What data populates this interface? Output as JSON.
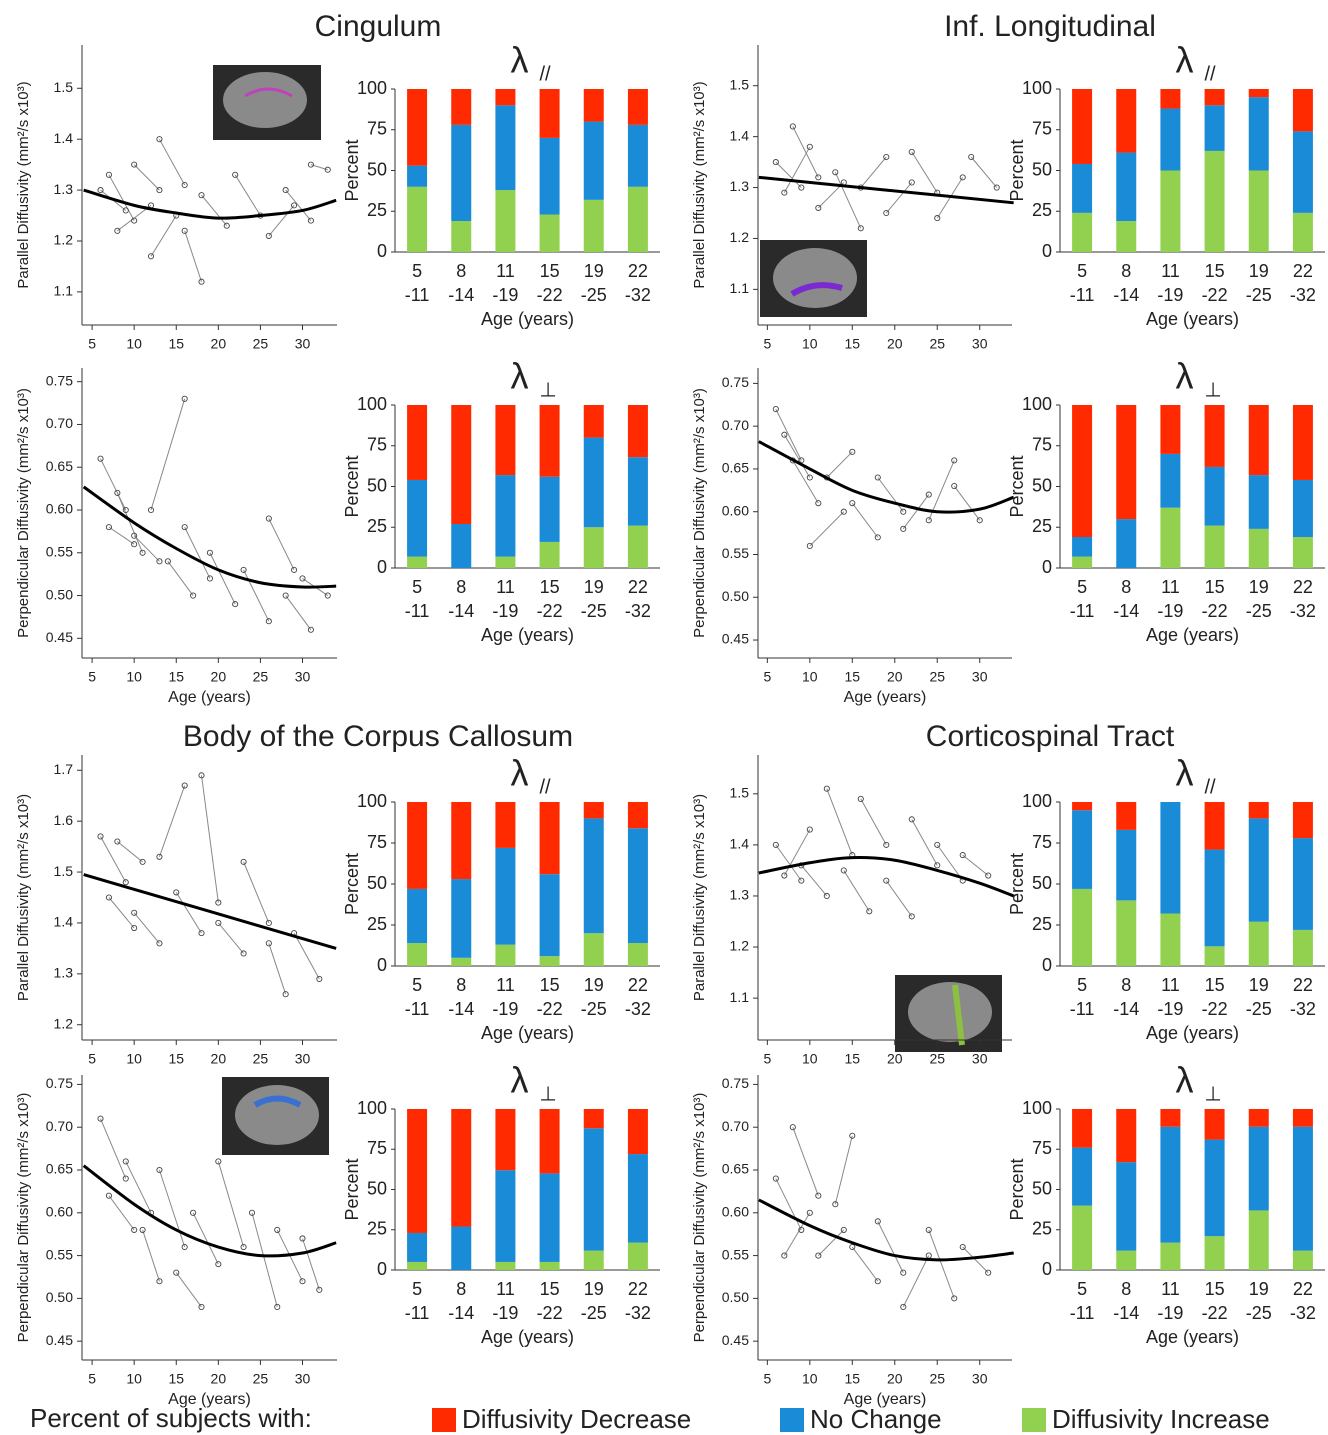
{
  "groups": [
    "Cingulum",
    "Inf. Longitudinal",
    "Body of the Corpus Callosum",
    "Corticospinal Tract"
  ],
  "legend_title": "Percent of subjects with:",
  "chart_data": [
    {
      "type": "scatter",
      "ylabel": "Parallel Diffusivity (mm²/s x10³)",
      "x": [
        6,
        9,
        7,
        10,
        8,
        12,
        10,
        13,
        12,
        15,
        13,
        16,
        16,
        18,
        18,
        21,
        22,
        25,
        26,
        29,
        28,
        31,
        31,
        33
      ],
      "y": [
        1.3,
        1.26,
        1.33,
        1.24,
        1.22,
        1.27,
        1.35,
        1.3,
        1.17,
        1.25,
        1.4,
        1.31,
        1.22,
        1.12,
        1.29,
        1.23,
        1.33,
        1.25,
        1.21,
        1.27,
        1.3,
        1.24,
        1.35,
        1.34
      ],
      "fit": {
        "x": [
          4,
          10,
          15,
          20,
          25,
          30,
          34
        ],
        "y": [
          1.3,
          1.27,
          1.255,
          1.245,
          1.25,
          1.26,
          1.28
        ]
      },
      "xlim": [
        3.8,
        34.1
      ],
      "ylim": [
        1.035,
        1.585
      ],
      "xticks": [
        5,
        10,
        15,
        20,
        25,
        30
      ],
      "yticks": [
        1.1,
        1.2,
        1.3,
        1.4,
        1.5
      ]
    },
    {
      "type": "bar",
      "title": "λ",
      "subtitle": "//",
      "categories": [
        "5\n-11",
        "8\n-14",
        "11\n-19",
        "15\n-22",
        "19\n-25",
        "22\n-32"
      ],
      "series": [
        {
          "name": "Diffusivity Decrease",
          "color": "#ff2a00",
          "values": [
            47,
            22,
            10,
            30,
            20,
            22
          ]
        },
        {
          "name": "No Change",
          "color": "#1a8bd6",
          "values": [
            13,
            59,
            52,
            47,
            48,
            38
          ]
        },
        {
          "name": "Diffusivity Increase",
          "color": "#92d050",
          "values": [
            40,
            19,
            38,
            23,
            32,
            40
          ]
        }
      ],
      "ylim": [
        0,
        100
      ],
      "yticks": [
        0,
        25,
        50,
        75,
        100
      ],
      "xlabel": "Age (years)",
      "ylabel": "Percent"
    },
    {
      "type": "scatter",
      "ylabel": "Perpendicular Diffusivity (mm²/s x10³)",
      "xlabel": "Age (years)",
      "x": [
        6,
        9,
        7,
        10,
        8,
        11,
        10,
        13,
        12,
        16,
        14,
        17,
        16,
        19,
        19,
        22,
        23,
        26,
        26,
        29,
        28,
        31,
        30,
        33
      ],
      "y": [
        0.66,
        0.6,
        0.58,
        0.56,
        0.62,
        0.55,
        0.57,
        0.54,
        0.6,
        0.73,
        0.54,
        0.5,
        0.58,
        0.52,
        0.55,
        0.49,
        0.53,
        0.47,
        0.59,
        0.53,
        0.5,
        0.46,
        0.52,
        0.5
      ],
      "fit": {
        "x": [
          4,
          10,
          15,
          20,
          25,
          30,
          34
        ],
        "y": [
          0.627,
          0.585,
          0.555,
          0.53,
          0.515,
          0.51,
          0.511
        ]
      },
      "xlim": [
        3.8,
        34.1
      ],
      "ylim": [
        0.427,
        0.766
      ],
      "xticks": [
        5,
        10,
        15,
        20,
        25,
        30
      ],
      "yticks": [
        0.45,
        {
          "value": 0.5,
          "label": "0.50"
        },
        0.55,
        {
          "value": 0.6,
          "label": "0.60"
        },
        0.65,
        {
          "value": 0.7,
          "label": "0.70"
        },
        0.75
      ]
    },
    {
      "type": "bar",
      "title": "λ",
      "subtitle": "⊥",
      "categories": [
        "5\n-11",
        "8\n-14",
        "11\n-19",
        "15\n-22",
        "19\n-25",
        "22\n-32"
      ],
      "series": [
        {
          "color": "#ff2a00",
          "values": [
            46,
            73,
            43,
            44,
            20,
            32
          ]
        },
        {
          "color": "#1a8bd6",
          "values": [
            47,
            27,
            50,
            40,
            55,
            42
          ]
        },
        {
          "color": "#92d050",
          "values": [
            7,
            0,
            7,
            16,
            25,
            26
          ]
        }
      ],
      "ylim": [
        0,
        100
      ],
      "yticks": [
        0,
        25,
        50,
        75,
        100
      ],
      "xlabel": "Age (years)",
      "ylabel": "Percent"
    },
    {
      "type": "scatter",
      "ylabel": "Parallel Diffusivity (mm²/s x10³)",
      "x": [
        6,
        9,
        7,
        10,
        8,
        11,
        11,
        14,
        13,
        16,
        16,
        19,
        19,
        22,
        22,
        25,
        25,
        28,
        29,
        32
      ],
      "y": [
        1.35,
        1.3,
        1.29,
        1.38,
        1.42,
        1.32,
        1.26,
        1.31,
        1.33,
        1.22,
        1.3,
        1.36,
        1.25,
        1.31,
        1.37,
        1.29,
        1.24,
        1.32,
        1.36,
        1.3
      ],
      "fit": {
        "x": [
          4,
          19,
          34
        ],
        "y": [
          1.32,
          1.295,
          1.27
        ]
      },
      "xlim": [
        3.9,
        33.8
      ],
      "ylim": [
        1.03,
        1.58
      ],
      "xticks": [
        5,
        10,
        15,
        20,
        25,
        30
      ],
      "yticks": [
        1.1,
        1.2,
        1.3,
        1.4,
        1.5
      ]
    },
    {
      "type": "bar",
      "title": "λ",
      "subtitle": "//",
      "categories": [
        "5\n-11",
        "8\n-14",
        "11\n-19",
        "15\n-22",
        "19\n-25",
        "22\n-32"
      ],
      "series": [
        {
          "color": "#ff2a00",
          "values": [
            46,
            39,
            12,
            10,
            5,
            26
          ]
        },
        {
          "color": "#1a8bd6",
          "values": [
            30,
            42,
            38,
            28,
            45,
            50
          ]
        },
        {
          "color": "#92d050",
          "values": [
            24,
            19,
            50,
            62,
            50,
            24
          ]
        }
      ],
      "ylim": [
        0,
        100
      ],
      "yticks": [
        0,
        25,
        50,
        75,
        100
      ],
      "xlabel": "Age (years)",
      "ylabel": "Percent"
    },
    {
      "type": "scatter",
      "ylabel": "Perpendicular Diffusivity (mm²/s x10³)",
      "xlabel": "Age (years)",
      "x": [
        6,
        9,
        7,
        10,
        8,
        11,
        10,
        14,
        12,
        15,
        15,
        18,
        18,
        21,
        21,
        24,
        24,
        27,
        27,
        30
      ],
      "y": [
        0.72,
        0.66,
        0.69,
        0.64,
        0.66,
        0.61,
        0.56,
        0.6,
        0.64,
        0.67,
        0.61,
        0.57,
        0.64,
        0.6,
        0.58,
        0.62,
        0.59,
        0.66,
        0.63,
        0.59
      ],
      "fit": {
        "x": [
          4,
          10,
          15,
          20,
          25,
          30,
          34
        ],
        "y": [
          0.682,
          0.65,
          0.625,
          0.61,
          0.6,
          0.603,
          0.617
        ]
      },
      "xlim": [
        3.9,
        33.8
      ],
      "ylim": [
        0.429,
        0.768
      ],
      "xticks": [
        5,
        10,
        15,
        20,
        25,
        30
      ],
      "yticks": [
        0.45,
        {
          "value": 0.5,
          "label": "0.50"
        },
        0.55,
        {
          "value": 0.6,
          "label": "0.60"
        },
        0.65,
        {
          "value": 0.7,
          "label": "0.70"
        },
        0.75
      ]
    },
    {
      "type": "bar",
      "title": "λ",
      "subtitle": "⊥",
      "categories": [
        "5\n-11",
        "8\n-14",
        "11\n-19",
        "15\n-22",
        "19\n-25",
        "22\n-32"
      ],
      "series": [
        {
          "color": "#ff2a00",
          "values": [
            81,
            70,
            30,
            38,
            43,
            46
          ]
        },
        {
          "color": "#1a8bd6",
          "values": [
            12,
            30,
            33,
            36,
            33,
            35
          ]
        },
        {
          "color": "#92d050",
          "values": [
            7,
            0,
            37,
            26,
            24,
            19
          ]
        }
      ],
      "ylim": [
        0,
        100
      ],
      "yticks": [
        0,
        25,
        50,
        75,
        100
      ],
      "xlabel": "Age (years)",
      "ylabel": "Percent"
    },
    {
      "type": "scatter",
      "ylabel": "Parallel Diffusivity (mm²/s x10³)",
      "x": [
        6,
        9,
        7,
        10,
        8,
        11,
        10,
        13,
        13,
        16,
        15,
        18,
        18,
        20,
        20,
        23,
        23,
        26,
        26,
        28,
        29,
        32
      ],
      "y": [
        1.57,
        1.48,
        1.45,
        1.39,
        1.56,
        1.52,
        1.42,
        1.36,
        1.53,
        1.67,
        1.46,
        1.38,
        1.69,
        1.44,
        1.4,
        1.34,
        1.52,
        1.4,
        1.36,
        1.26,
        1.38,
        1.29
      ],
      "fit": {
        "x": [
          4,
          19,
          34
        ],
        "y": [
          1.495,
          1.4225,
          1.35
        ]
      },
      "xlim": [
        3.8,
        34.1
      ],
      "ylim": [
        1.17,
        1.73
      ],
      "xticks": [
        5,
        10,
        15,
        20,
        25,
        30
      ],
      "yticks": [
        1.2,
        1.3,
        1.4,
        1.5,
        1.6,
        1.7
      ]
    },
    {
      "type": "bar",
      "title": "λ",
      "subtitle": "//",
      "categories": [
        "5\n-11",
        "8\n-14",
        "11\n-19",
        "15\n-22",
        "19\n-25",
        "22\n-32"
      ],
      "series": [
        {
          "color": "#ff2a00",
          "values": [
            53,
            47,
            28,
            44,
            10,
            16
          ]
        },
        {
          "color": "#1a8bd6",
          "values": [
            33,
            48,
            59,
            50,
            70,
            70
          ]
        },
        {
          "color": "#92d050",
          "values": [
            14,
            5,
            13,
            6,
            20,
            14
          ]
        }
      ],
      "ylim": [
        0,
        100
      ],
      "yticks": [
        0,
        25,
        50,
        75,
        100
      ],
      "xlabel": "Age (years)",
      "ylabel": "Percent"
    },
    {
      "type": "scatter",
      "ylabel": "Perpendicular Diffusivity (mm²/s x10³)",
      "xlabel": "Age (years)",
      "x": [
        6,
        9,
        7,
        10,
        9,
        12,
        11,
        13,
        13,
        16,
        15,
        18,
        17,
        20,
        20,
        23,
        24,
        27,
        27,
        30,
        30,
        32
      ],
      "y": [
        0.71,
        0.64,
        0.62,
        0.58,
        0.66,
        0.6,
        0.58,
        0.52,
        0.65,
        0.56,
        0.53,
        0.49,
        0.6,
        0.54,
        0.66,
        0.56,
        0.6,
        0.49,
        0.58,
        0.52,
        0.57,
        0.51
      ],
      "fit": {
        "x": [
          4,
          10,
          15,
          20,
          25,
          30,
          34
        ],
        "y": [
          0.655,
          0.61,
          0.58,
          0.56,
          0.55,
          0.553,
          0.565
        ]
      },
      "xlim": [
        3.8,
        34.1
      ],
      "ylim": [
        0.428,
        0.761
      ],
      "xticks": [
        5,
        10,
        15,
        20,
        25,
        30
      ],
      "yticks": [
        0.45,
        {
          "value": 0.5,
          "label": "0.50"
        },
        0.55,
        {
          "value": 0.6,
          "label": "0.60"
        },
        0.65,
        {
          "value": 0.7,
          "label": "0.70"
        },
        0.75
      ]
    },
    {
      "type": "bar",
      "title": "λ",
      "subtitle": "⊥",
      "categories": [
        "5\n-11",
        "8\n-14",
        "11\n-19",
        "15\n-22",
        "19\n-25",
        "22\n-32"
      ],
      "series": [
        {
          "color": "#ff2a00",
          "values": [
            77,
            73,
            38,
            40,
            12,
            28
          ]
        },
        {
          "color": "#1a8bd6",
          "values": [
            18,
            27,
            57,
            55,
            76,
            55
          ]
        },
        {
          "color": "#92d050",
          "values": [
            5,
            0,
            5,
            5,
            12,
            17
          ]
        }
      ],
      "ylim": [
        0,
        100
      ],
      "yticks": [
        0,
        25,
        50,
        75,
        100
      ],
      "xlabel": "Age (years)",
      "ylabel": "Percent"
    },
    {
      "type": "scatter",
      "ylabel": "Parallel Diffusivity (mm²/s x10³)",
      "x": [
        6,
        9,
        7,
        10,
        9,
        12,
        12,
        15,
        14,
        17,
        16,
        19,
        19,
        22,
        22,
        25,
        25,
        28,
        28,
        31
      ],
      "y": [
        1.4,
        1.33,
        1.34,
        1.43,
        1.36,
        1.3,
        1.51,
        1.38,
        1.35,
        1.27,
        1.49,
        1.4,
        1.33,
        1.26,
        1.45,
        1.36,
        1.4,
        1.33,
        1.38,
        1.34
      ],
      "fit": {
        "x": [
          4,
          10,
          15,
          20,
          25,
          30,
          34
        ],
        "y": [
          1.345,
          1.365,
          1.375,
          1.37,
          1.35,
          1.325,
          1.3
        ]
      },
      "xlim": [
        3.9,
        33.8
      ],
      "ylim": [
        1.018,
        1.576
      ],
      "xticks": [
        5,
        10,
        15,
        20,
        25,
        30
      ],
      "yticks": [
        1.1,
        1.2,
        1.3,
        1.4,
        1.5
      ]
    },
    {
      "type": "bar",
      "title": "λ",
      "subtitle": "//",
      "categories": [
        "5\n-11",
        "8\n-14",
        "11\n-19",
        "15\n-22",
        "19\n-25",
        "22\n-32"
      ],
      "series": [
        {
          "color": "#ff2a00",
          "values": [
            5,
            17,
            0,
            29,
            10,
            22
          ]
        },
        {
          "color": "#1a8bd6",
          "values": [
            48,
            43,
            68,
            59,
            63,
            56
          ]
        },
        {
          "color": "#92d050",
          "values": [
            47,
            40,
            32,
            12,
            27,
            22
          ]
        }
      ],
      "ylim": [
        0,
        100
      ],
      "yticks": [
        0,
        25,
        50,
        75,
        100
      ],
      "xlabel": "Age (years)",
      "ylabel": "Percent"
    },
    {
      "type": "scatter",
      "ylabel": "Perpendicular Diffusivity (mm²/s x10³)",
      "xlabel": "Age (years)",
      "x": [
        6,
        9,
        7,
        10,
        8,
        11,
        11,
        14,
        13,
        15,
        15,
        18,
        18,
        21,
        21,
        24,
        24,
        27,
        28,
        31
      ],
      "y": [
        0.64,
        0.58,
        0.55,
        0.6,
        0.7,
        0.62,
        0.55,
        0.58,
        0.61,
        0.69,
        0.56,
        0.52,
        0.59,
        0.53,
        0.49,
        0.55,
        0.58,
        0.5,
        0.56,
        0.53
      ],
      "fit": {
        "x": [
          4,
          10,
          15,
          20,
          25,
          30,
          34
        ],
        "y": [
          0.615,
          0.585,
          0.565,
          0.55,
          0.545,
          0.548,
          0.553
        ]
      },
      "xlim": [
        3.9,
        33.8
      ],
      "ylim": [
        0.428,
        0.761
      ],
      "xticks": [
        5,
        10,
        15,
        20,
        25,
        30
      ],
      "yticks": [
        0.45,
        {
          "value": 0.5,
          "label": "0.50"
        },
        0.55,
        {
          "value": 0.6,
          "label": "0.60"
        },
        0.65,
        {
          "value": 0.7,
          "label": "0.70"
        },
        0.75
      ]
    },
    {
      "type": "bar",
      "title": "λ",
      "subtitle": "⊥",
      "categories": [
        "5\n-11",
        "8\n-14",
        "11\n-19",
        "15\n-22",
        "19\n-25",
        "22\n-32"
      ],
      "series": [
        {
          "color": "#ff2a00",
          "values": [
            24,
            33,
            11,
            19,
            11,
            11
          ]
        },
        {
          "color": "#1a8bd6",
          "values": [
            36,
            55,
            72,
            60,
            52,
            77
          ]
        },
        {
          "color": "#92d050",
          "values": [
            40,
            12,
            17,
            21,
            37,
            12
          ]
        }
      ],
      "ylim": [
        0,
        100
      ],
      "yticks": [
        0,
        25,
        50,
        75,
        100
      ],
      "xlabel": "Age (years)",
      "ylabel": "Percent"
    }
  ]
}
